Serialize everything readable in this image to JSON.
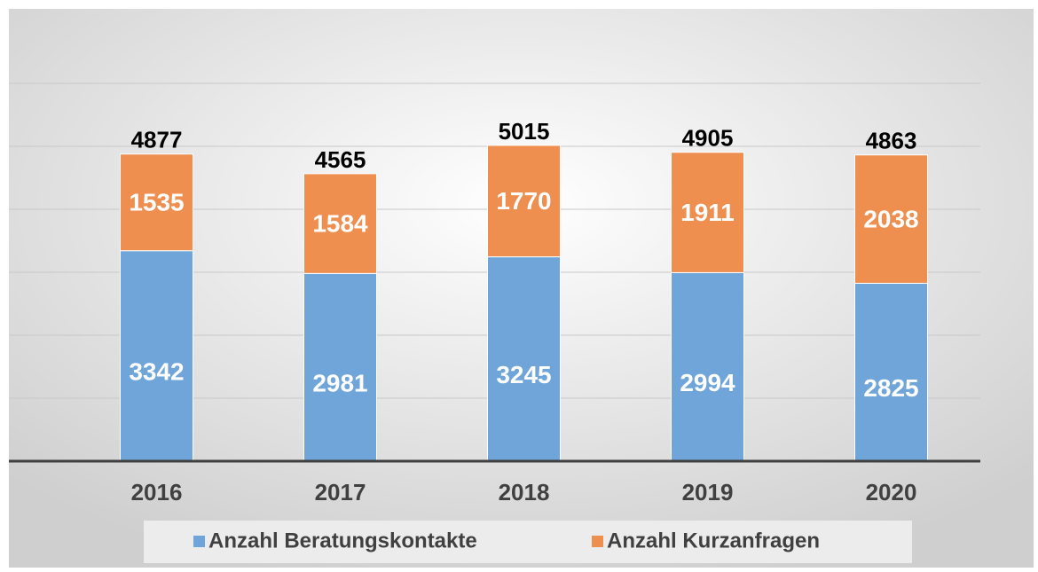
{
  "chart_data": {
    "type": "stacked_bar",
    "categories": [
      "2016",
      "2017",
      "2018",
      "2019",
      "2020"
    ],
    "series": [
      {
        "name": "Anzahl Beratungskontakte",
        "color": "#6fa5d9",
        "values": [
          3342,
          2981,
          3245,
          2994,
          2825
        ]
      },
      {
        "name": "Anzahl Kurzanfragen",
        "color": "#ee8e4f",
        "values": [
          1535,
          1584,
          1770,
          1911,
          2038
        ]
      }
    ],
    "totals": [
      4877,
      4565,
      5015,
      4905,
      4863
    ],
    "ylim": [
      0,
      6000
    ],
    "yticks": [
      0,
      1000,
      2000,
      3000,
      4000,
      5000,
      6000
    ],
    "grid": true,
    "legend": "bottom"
  }
}
